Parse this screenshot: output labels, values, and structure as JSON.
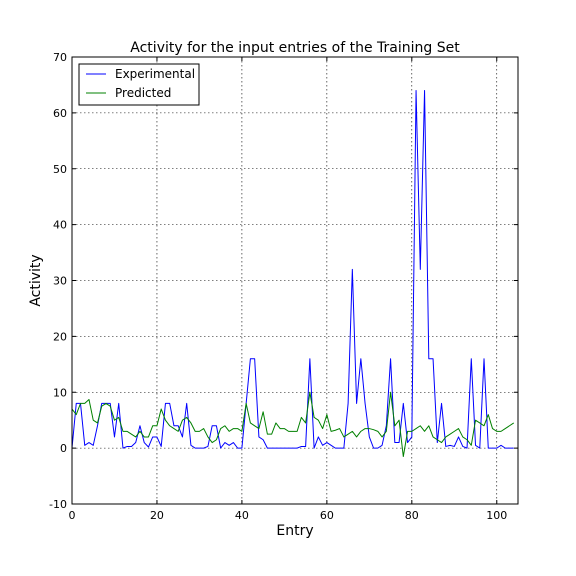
{
  "chart_data": {
    "type": "line",
    "title": "Activity for the input entries of the Training Set",
    "xlabel": "Entry",
    "ylabel": "Activity",
    "xlim": [
      0,
      105
    ],
    "ylim": [
      -10,
      70
    ],
    "xticks": [
      0,
      20,
      40,
      60,
      80,
      100
    ],
    "yticks": [
      -10,
      0,
      10,
      20,
      30,
      40,
      50,
      60,
      70
    ],
    "grid": true,
    "legend_position": "top-left",
    "series": [
      {
        "name": "Experimental",
        "color": "#0000ff",
        "values": [
          0,
          8,
          8,
          0.5,
          1,
          0.5,
          4,
          8,
          8,
          8,
          2,
          8,
          0,
          0.3,
          0.3,
          1,
          4,
          1,
          0.2,
          2,
          2,
          0.3,
          8,
          8,
          4,
          4,
          2,
          8,
          0.5,
          0,
          0,
          0,
          0.3,
          4,
          4,
          0,
          1,
          0.5,
          1,
          0,
          0,
          8,
          16,
          16,
          2,
          1.5,
          0,
          0,
          0,
          0,
          0,
          0,
          0,
          0,
          0.3,
          0.3,
          16,
          0,
          2,
          0.5,
          1,
          0.5,
          0,
          0,
          0,
          8,
          32,
          8,
          16,
          8,
          2,
          0,
          0,
          0.5,
          4,
          16,
          1,
          1,
          8,
          1,
          2,
          64,
          32,
          64,
          16,
          16,
          1,
          8,
          0.3,
          0.5,
          0.3,
          2,
          0.3,
          0,
          16,
          0.5,
          0,
          16,
          0,
          0,
          0,
          0.5,
          0,
          0,
          0
        ]
      },
      {
        "name": "Predicted",
        "color": "#008000",
        "values": [
          7,
          6,
          8,
          8,
          8.7,
          5,
          4.5,
          7.5,
          8,
          7.5,
          5,
          5.5,
          3,
          3,
          2.5,
          2,
          3,
          2,
          2,
          4,
          4,
          7,
          5,
          4,
          3.5,
          3,
          5,
          5.5,
          4.5,
          3,
          3,
          3.5,
          2,
          1,
          1.5,
          3.5,
          4,
          3,
          3.5,
          3.5,
          3,
          8,
          4.5,
          4,
          3.5,
          6.5,
          2.5,
          2.5,
          4.5,
          3.5,
          3.5,
          3,
          3,
          3,
          5.5,
          4.5,
          10,
          5.5,
          5,
          3.5,
          6,
          3,
          3.2,
          3.5,
          2,
          2.5,
          3,
          2,
          3,
          3.5,
          3.5,
          3.3,
          3,
          2,
          3,
          10,
          4,
          5,
          -1.5,
          3,
          3,
          3.5,
          4,
          3,
          4,
          2,
          1.5,
          1,
          2,
          2.5,
          3,
          3.5,
          2,
          1.5,
          0.5,
          5,
          4.5,
          4,
          6,
          3.5,
          3,
          3,
          3.5,
          4,
          4.5
        ]
      }
    ]
  }
}
